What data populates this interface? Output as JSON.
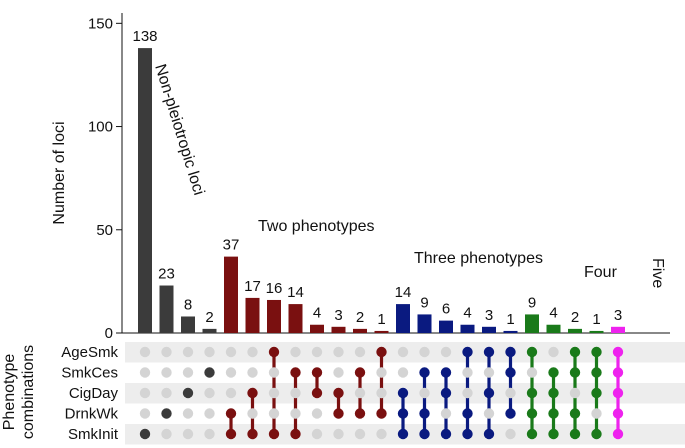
{
  "chart_data": {
    "type": "bar",
    "ylabel": "Number of loci",
    "matrix_label": [
      "Phenotype",
      "combinations"
    ],
    "ylim": [
      0,
      155
    ],
    "yticks": [
      0,
      50,
      100,
      150
    ],
    "phenotypes": [
      "AgeSmk",
      "SmkCes",
      "CigDay",
      "DrnkWk",
      "SmkInit"
    ],
    "values": [
      138,
      23,
      8,
      2,
      37,
      17,
      16,
      14,
      4,
      3,
      2,
      1,
      14,
      9,
      6,
      4,
      3,
      1,
      9,
      4,
      2,
      1,
      3
    ],
    "value_labels": [
      "138",
      "23",
      "8",
      "2",
      "37",
      "17",
      "16",
      "14",
      "4",
      "3",
      "2",
      "1",
      "14",
      "9",
      "6",
      "4",
      "3",
      "1",
      "9",
      "4",
      "2",
      "1",
      "3"
    ],
    "combinations": [
      [
        "SmkInit"
      ],
      [
        "DrnkWk"
      ],
      [
        "CigDay"
      ],
      [
        "SmkCes"
      ],
      [
        "DrnkWk",
        "SmkInit"
      ],
      [
        "CigDay",
        "SmkInit"
      ],
      [
        "AgeSmk",
        "SmkInit"
      ],
      [
        "SmkCes",
        "SmkInit"
      ],
      [
        "SmkCes",
        "CigDay"
      ],
      [
        "CigDay",
        "DrnkWk"
      ],
      [
        "SmkCes",
        "DrnkWk"
      ],
      [
        "AgeSmk",
        "DrnkWk"
      ],
      [
        "CigDay",
        "DrnkWk",
        "SmkInit"
      ],
      [
        "SmkCes",
        "DrnkWk",
        "SmkInit"
      ],
      [
        "SmkCes",
        "CigDay",
        "SmkInit"
      ],
      [
        "AgeSmk",
        "DrnkWk",
        "SmkInit"
      ],
      [
        "AgeSmk",
        "CigDay",
        "SmkInit"
      ],
      [
        "AgeSmk",
        "SmkCes",
        "DrnkWk"
      ],
      [
        "AgeSmk",
        "CigDay",
        "DrnkWk",
        "SmkInit"
      ],
      [
        "SmkCes",
        "CigDay",
        "DrnkWk",
        "SmkInit"
      ],
      [
        "AgeSmk",
        "SmkCes",
        "DrnkWk",
        "SmkInit"
      ],
      [
        "AgeSmk",
        "SmkCes",
        "CigDay",
        "SmkInit"
      ],
      [
        "AgeSmk",
        "SmkCes",
        "CigDay",
        "DrnkWk",
        "SmkInit"
      ]
    ],
    "groups": [
      {
        "name": "Non-pleiotropic loci",
        "start": 0,
        "end": 3,
        "color": "#3b3b3b"
      },
      {
        "name": "Two phenotypes",
        "start": 4,
        "end": 11,
        "color": "#7a1010"
      },
      {
        "name": "Three phenotypes",
        "start": 12,
        "end": 17,
        "color": "#0a1a80"
      },
      {
        "name": "Four",
        "start": 18,
        "end": 21,
        "color": "#1a7a1a"
      },
      {
        "name": "Five",
        "start": 22,
        "end": 22,
        "color": "#ee22ee"
      }
    ],
    "inactive_dot_color": "#d4d4d4",
    "stripe_color": "#ededed"
  }
}
